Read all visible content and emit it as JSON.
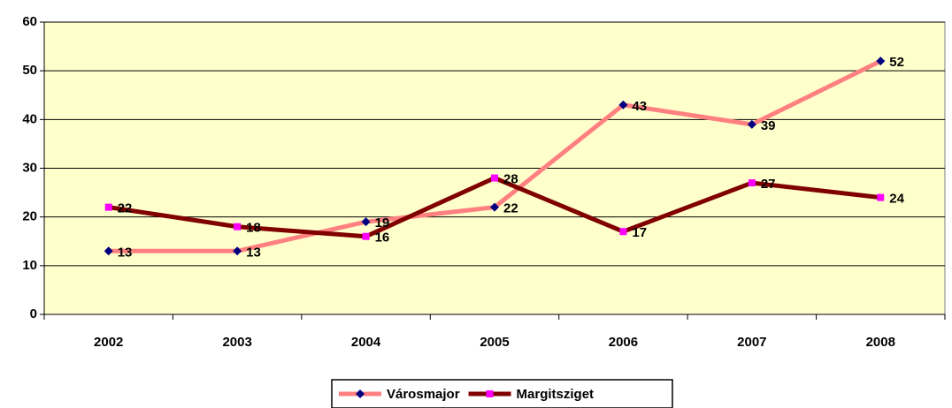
{
  "chart_data": {
    "type": "line",
    "categories": [
      "2002",
      "2003",
      "2004",
      "2005",
      "2006",
      "2007",
      "2008"
    ],
    "series": [
      {
        "name": "Városmajor",
        "color": "#ff8080",
        "marker": "diamond",
        "marker_color": "#000080",
        "values": [
          13,
          13,
          19,
          22,
          43,
          39,
          52
        ]
      },
      {
        "name": "Margitsziget",
        "color": "#800000",
        "marker": "square",
        "marker_color": "#ff00ff",
        "values": [
          22,
          18,
          16,
          28,
          17,
          27,
          24
        ]
      }
    ],
    "ylim": [
      0,
      60
    ],
    "yticks": [
      0,
      10,
      20,
      30,
      40,
      50,
      60
    ],
    "grid": true,
    "plot_background": "#ffffcc",
    "legend": "bottom",
    "data_labels": true
  }
}
